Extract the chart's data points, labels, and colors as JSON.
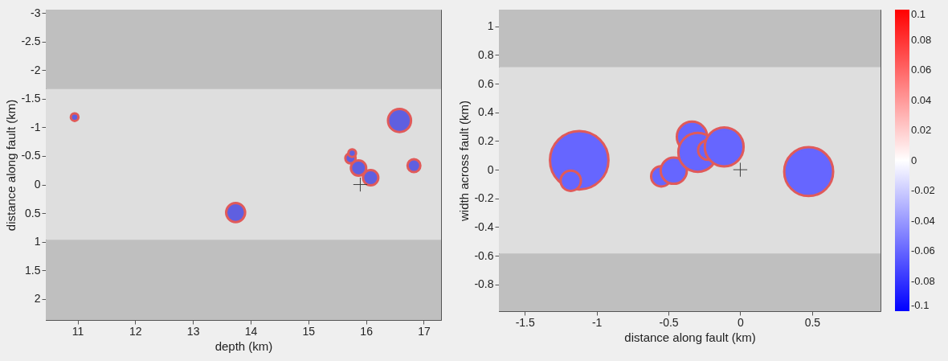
{
  "chart_data": [
    {
      "type": "bubble",
      "xlabel": "depth (km)",
      "ylabel": "distance along fault (km)",
      "xlim": [
        10.45,
        17.3
      ],
      "ylim": [
        2.37,
        -3.06
      ],
      "xticks": [
        11,
        12,
        13,
        14,
        15,
        16,
        17
      ],
      "yticks": [
        -3,
        -2.5,
        -2,
        -1.5,
        -1,
        -0.5,
        0,
        0.5,
        1,
        1.5,
        2
      ],
      "grid": false,
      "legend": false,
      "bands": [
        {
          "axis": "y",
          "from": -3.06,
          "to": -1.67,
          "color": "#bfbfbf"
        },
        {
          "axis": "y",
          "from": -1.67,
          "to": 0.97,
          "color": "#dedede"
        },
        {
          "axis": "y",
          "from": 0.97,
          "to": 2.37,
          "color": "#bfbfbf"
        }
      ],
      "series": [
        {
          "type": "bubble",
          "color": "#5f5fe0",
          "x": [
            10.95,
            16.58,
            15.73,
            15.76,
            15.87,
            16.08,
            16.83,
            13.74
          ],
          "values": [
            -1.18,
            -1.12,
            -0.46,
            -0.55,
            -0.29,
            -0.12,
            -0.33,
            0.49
          ],
          "sizes": [
            0.11,
            1,
            0.2,
            0.11,
            0.44,
            0.44,
            0.31,
            0.68
          ]
        },
        {
          "type": "scatter",
          "marker": "cross",
          "color": "#404040",
          "x": [
            15.9
          ],
          "values": [
            0
          ]
        }
      ]
    },
    {
      "type": "bubble",
      "xlabel": "distance along fault (km)",
      "ylabel": "width across fault (km)",
      "xlim": [
        -1.68,
        0.976
      ],
      "ylim": [
        -0.987,
        1.117
      ],
      "xticks": [
        -1.5,
        -1,
        -0.5,
        0,
        0.5
      ],
      "yticks": [
        -0.8,
        -0.6,
        -0.4,
        -0.2,
        0,
        0.2,
        0.4,
        0.6,
        0.8,
        1
      ],
      "grid": false,
      "legend": false,
      "clim": [
        -0.1,
        0.1
      ],
      "cticks": [
        -0.1,
        -0.08,
        -0.06,
        -0.04,
        -0.02,
        0,
        0.02,
        0.04,
        0.06,
        0.08,
        0.1
      ],
      "bands": [
        {
          "axis": "y",
          "from": 0.716,
          "to": 1.117,
          "color": "#bfbfbf"
        },
        {
          "axis": "y",
          "from": -0.586,
          "to": 0.716,
          "color": "#dedede"
        },
        {
          "axis": "y",
          "from": -0.987,
          "to": -0.586,
          "color": "#bfbfbf"
        }
      ],
      "series": [
        {
          "type": "bubble",
          "x": [
            -1.121,
            -1.18,
            -0.55,
            -0.463,
            -0.336,
            -0.296,
            -0.226,
            -0.112,
            0.476
          ],
          "values": [
            0.066,
            -0.077,
            -0.046,
            -0.007,
            0.229,
            0.121,
            0.137,
            0.159,
            -0.013
          ],
          "sizes": [
            1,
            0.12,
            0.12,
            0.2,
            0.27,
            0.44,
            0.11,
            0.44,
            0.7
          ],
          "cvalues": [
            -0.06,
            -0.06,
            -0.06,
            -0.06,
            -0.06,
            -0.06,
            -0.06,
            -0.06,
            -0.06
          ]
        },
        {
          "type": "scatter",
          "marker": "cross",
          "color": "#404040",
          "x": [
            0
          ],
          "values": [
            0
          ]
        }
      ]
    }
  ]
}
